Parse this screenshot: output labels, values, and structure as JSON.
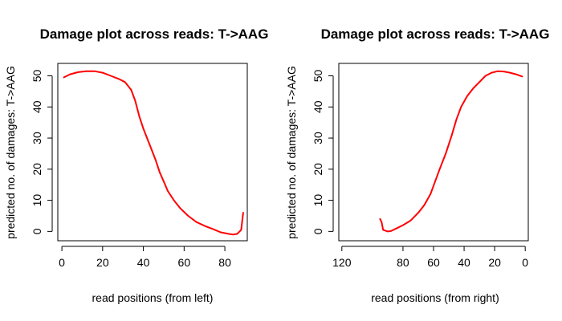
{
  "chart_data": [
    {
      "type": "line",
      "title": "Damage plot across reads: T->AAG",
      "xlabel": "read positions (from left)",
      "ylabel": "predicted no. of damages: T->AAG",
      "xlim": [
        -2,
        91
      ],
      "ylim": [
        -3,
        54
      ],
      "x_ticks": [
        0,
        20,
        40,
        60,
        80
      ],
      "y_ticks": [
        0,
        10,
        20,
        30,
        40,
        50
      ],
      "x_reversed": false,
      "grid": false,
      "series": [
        {
          "color": "#ff0000",
          "points": [
            [
              1,
              49.5
            ],
            [
              4,
              50.5
            ],
            [
              8,
              51.2
            ],
            [
              12,
              51.5
            ],
            [
              16,
              51.5
            ],
            [
              20,
              51
            ],
            [
              24,
              50
            ],
            [
              28,
              49
            ],
            [
              31,
              48
            ],
            [
              34,
              45.5
            ],
            [
              36,
              42
            ],
            [
              38,
              37
            ],
            [
              40,
              33
            ],
            [
              43,
              28
            ],
            [
              46,
              23
            ],
            [
              48,
              19
            ],
            [
              50,
              16
            ],
            [
              52,
              13
            ],
            [
              55,
              10
            ],
            [
              58,
              7.5
            ],
            [
              62,
              5
            ],
            [
              66,
              3
            ],
            [
              70,
              1.8
            ],
            [
              74,
              0.8
            ],
            [
              78,
              -0.3
            ],
            [
              82,
              -0.8
            ],
            [
              84,
              -1
            ],
            [
              86,
              -0.8
            ],
            [
              88,
              0.5
            ],
            [
              89,
              6
            ]
          ]
        }
      ]
    },
    {
      "type": "line",
      "title": "Damage plot across reads: T->AAG",
      "xlabel": "read positions (from right)",
      "ylabel": "predicted no. of damages: T->AAG",
      "xlim": [
        122,
        -2
      ],
      "ylim": [
        -3,
        54
      ],
      "x_ticks": [
        120,
        80,
        60,
        40,
        20,
        0
      ],
      "y_ticks": [
        0,
        10,
        20,
        30,
        40,
        50
      ],
      "x_reversed": true,
      "grid": false,
      "series": [
        {
          "color": "#ff0000",
          "points": [
            [
              95,
              4
            ],
            [
              94,
              3
            ],
            [
              93,
              0.5
            ],
            [
              90,
              0
            ],
            [
              88,
              0.1
            ],
            [
              85,
              0.8
            ],
            [
              80,
              2
            ],
            [
              75,
              3.5
            ],
            [
              70,
              6
            ],
            [
              66,
              8.5
            ],
            [
              62,
              12
            ],
            [
              59,
              16
            ],
            [
              56,
              20
            ],
            [
              52,
              25
            ],
            [
              48,
              31
            ],
            [
              45,
              36
            ],
            [
              42,
              40
            ],
            [
              38,
              43.5
            ],
            [
              34,
              46
            ],
            [
              30,
              48
            ],
            [
              26,
              50
            ],
            [
              22,
              51
            ],
            [
              18,
              51.5
            ],
            [
              14,
              51.4
            ],
            [
              10,
              51
            ],
            [
              6,
              50.5
            ],
            [
              2,
              49.8
            ]
          ]
        }
      ]
    }
  ]
}
